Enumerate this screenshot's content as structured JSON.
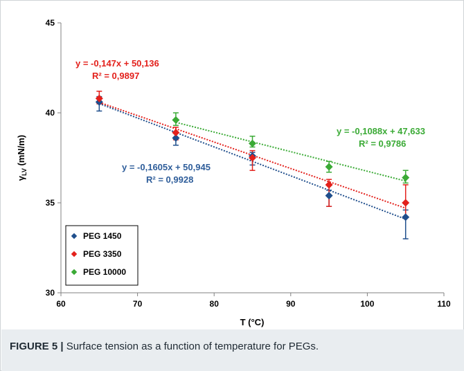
{
  "chart_data": {
    "type": "scatter",
    "xlabel": "T (°C)",
    "ylabel": "γLV (mN/m)",
    "ylabel_main": "γ",
    "ylabel_sub": "LV",
    "ylabel_rest": " (mN/m)",
    "xlim": [
      60,
      110
    ],
    "ylim": [
      30,
      45
    ],
    "xticks": [
      60,
      70,
      80,
      90,
      100,
      110
    ],
    "yticks": [
      30,
      35,
      40,
      45
    ],
    "grid": false,
    "legend_position": "bottom-left",
    "series": [
      {
        "name": "PEG 1450",
        "color": "#1f4e8c",
        "x": [
          65,
          75,
          85,
          95,
          105
        ],
        "y": [
          40.6,
          38.6,
          37.6,
          35.4,
          34.2
        ],
        "err_low": [
          0.5,
          0.4,
          0.5,
          0.6,
          1.2
        ],
        "err_high": [
          0.3,
          0.3,
          0.2,
          0.3,
          0.4
        ],
        "trend": {
          "slope": -0.1605,
          "intercept": 50.945
        },
        "equation": "y = -0,1605x + 50,945",
        "r2": "R² = 0,9928"
      },
      {
        "name": "PEG 3350",
        "color": "#e3201b",
        "x": [
          65,
          75,
          85,
          95,
          105
        ],
        "y": [
          40.8,
          38.9,
          37.5,
          36.0,
          35.0
        ],
        "err_low": [
          0.3,
          0.4,
          0.7,
          1.2,
          0.8
        ],
        "err_high": [
          0.4,
          0.3,
          0.4,
          0.3,
          1.0
        ],
        "trend": {
          "slope": -0.147,
          "intercept": 50.136
        },
        "equation": "y = -0,147x + 50,136",
        "r2": "R² = 0,9897"
      },
      {
        "name": "PEG 10000",
        "color": "#3aaa35",
        "x": [
          65,
          75,
          85,
          95,
          105
        ],
        "y": [
          null,
          39.6,
          38.3,
          37.0,
          36.4
        ],
        "err_low": [
          null,
          0.3,
          0.2,
          0.3,
          0.3
        ],
        "err_high": [
          null,
          0.4,
          0.4,
          0.3,
          0.4
        ],
        "trend": {
          "slope": -0.1088,
          "intercept": 47.633
        },
        "equation": "y = -0,1088x + 47,633",
        "r2": "R² = 0,9786"
      }
    ]
  },
  "caption": {
    "label": "FIGURE 5 |",
    "text": " Surface tension as a function of temperature for PEGs."
  }
}
